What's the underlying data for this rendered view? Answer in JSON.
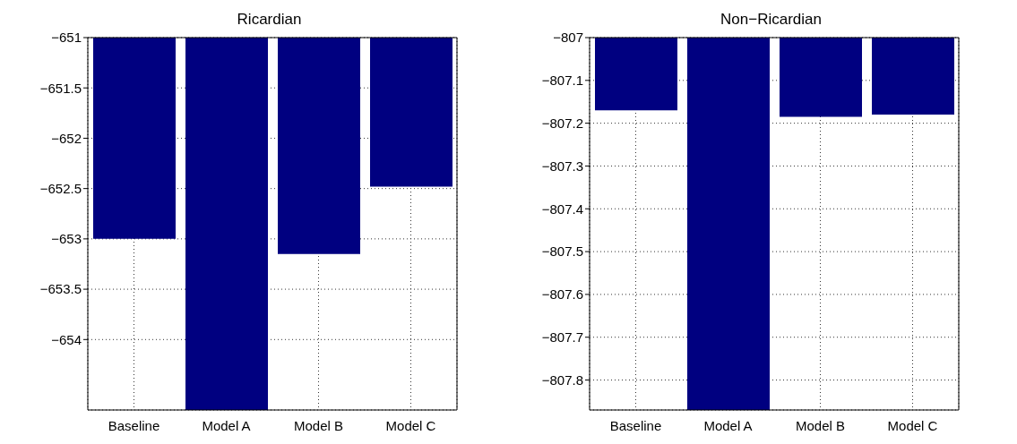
{
  "chart_data": [
    {
      "type": "bar",
      "title": "Ricardian",
      "categories": [
        "Baseline",
        "Model A",
        "Model B",
        "Model C"
      ],
      "values": [
        -653.0,
        -654.7,
        -653.15,
        -652.48
      ],
      "color": "#000080",
      "ylim": [
        -654.7,
        -651
      ],
      "yticks": [
        -654,
        -653.5,
        -653,
        -652.5,
        -652,
        -651.5,
        -651
      ],
      "grid": true
    },
    {
      "type": "bar",
      "title": "Non−Ricardian",
      "categories": [
        "Baseline",
        "Model A",
        "Model B",
        "Model C"
      ],
      "values": [
        -807.17,
        -807.87,
        -807.185,
        -807.18
      ],
      "color": "#000080",
      "ylim": [
        -807.87,
        -807
      ],
      "yticks": [
        -807.8,
        -807.7,
        -807.6,
        -807.5,
        -807.4,
        -807.3,
        -807.2,
        -807.1,
        -807
      ],
      "grid": true
    }
  ]
}
